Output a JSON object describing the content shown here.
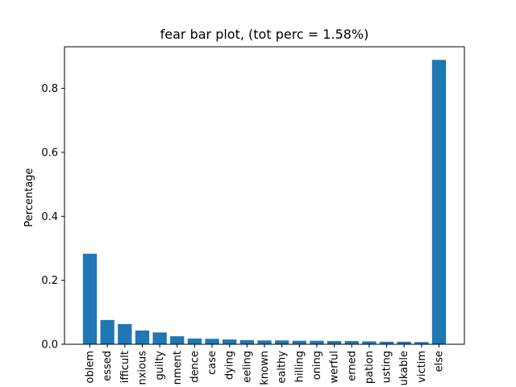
{
  "chart_data": {
    "type": "bar",
    "title": "fear bar plot, (tot perc = 1.58%)",
    "xlabel": "",
    "ylabel": "Percentage",
    "ylim": [
      0,
      0.93
    ],
    "yticks": [
      0.0,
      0.2,
      0.4,
      0.6,
      0.8
    ],
    "ytick_labels": [
      "0.0",
      "0.2",
      "0.4",
      "0.6",
      "0.8"
    ],
    "categories": [
      "oblem",
      "essed",
      "ifficult",
      "nxious",
      "guilty",
      "nment",
      "dence",
      "case",
      "dying",
      "eeling",
      "known",
      "ealthy",
      "hilling",
      "oning",
      "werful",
      "erned",
      "pation",
      "usting",
      "ukable",
      "victim",
      "else"
    ],
    "values": [
      0.283,
      0.076,
      0.063,
      0.043,
      0.037,
      0.025,
      0.018,
      0.017,
      0.015,
      0.013,
      0.012,
      0.012,
      0.011,
      0.011,
      0.01,
      0.01,
      0.009,
      0.008,
      0.008,
      0.007,
      0.889
    ],
    "bar_color": "#1f77b4",
    "grid": false,
    "legend": "none"
  }
}
